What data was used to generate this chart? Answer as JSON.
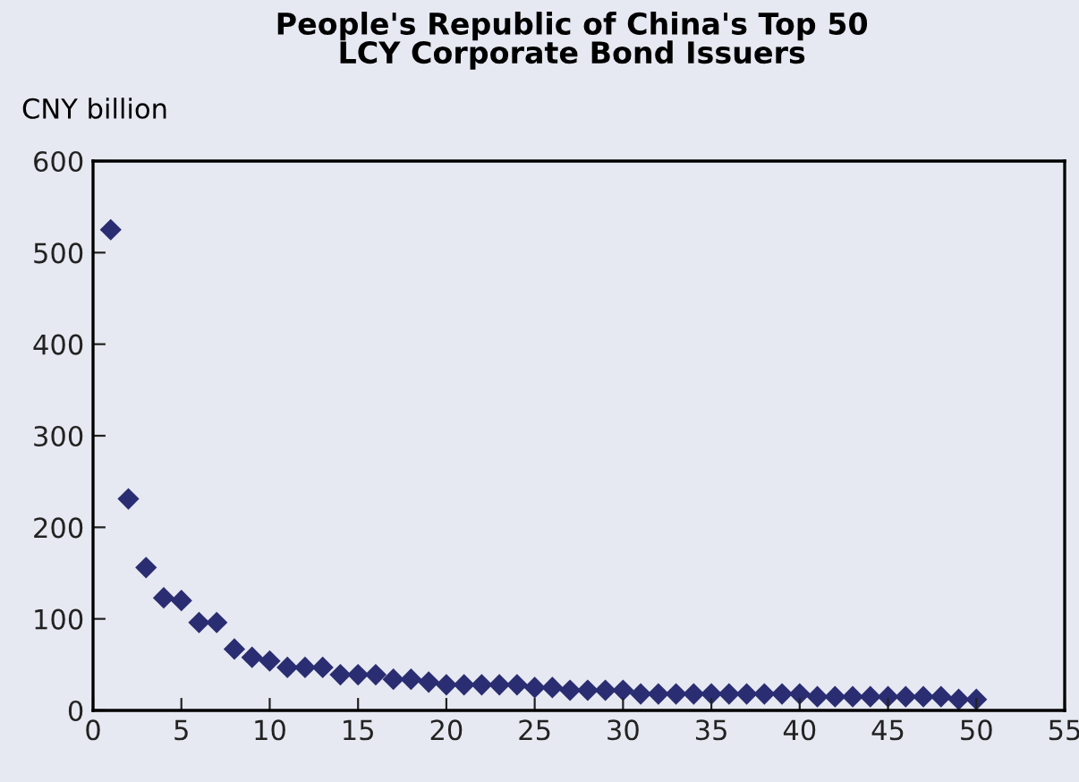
{
  "chart_data": {
    "type": "scatter",
    "title": "People's Republic of China's Top 50\nLCY Corporate Bond Issuers",
    "ylabel": "CNY billion",
    "x": [
      1,
      2,
      3,
      4,
      5,
      6,
      7,
      8,
      9,
      10,
      11,
      12,
      13,
      14,
      15,
      16,
      17,
      18,
      19,
      20,
      21,
      22,
      23,
      24,
      25,
      26,
      27,
      28,
      29,
      30,
      31,
      32,
      33,
      34,
      35,
      36,
      37,
      38,
      39,
      40,
      41,
      42,
      43,
      44,
      45,
      46,
      47,
      48,
      49,
      50
    ],
    "series": [
      {
        "color": "#2b2d72",
        "values": [
          525,
          231,
          156,
          123,
          120,
          96,
          96,
          67,
          58,
          54,
          47,
          47,
          47,
          39,
          39,
          39,
          34,
          34,
          31,
          28,
          28,
          28,
          28,
          28,
          25,
          25,
          22,
          22,
          22,
          22,
          18,
          18,
          18,
          18,
          18,
          18,
          18,
          18,
          18,
          18,
          15,
          15,
          15,
          15,
          15,
          15,
          15,
          15,
          12,
          12
        ]
      }
    ],
    "marker": "diamond",
    "xlim": [
      0,
      55
    ],
    "xticks": [
      0,
      5,
      10,
      15,
      20,
      25,
      30,
      35,
      40,
      45,
      50,
      55
    ],
    "ylim": [
      0,
      600
    ],
    "yticks": [
      0,
      100,
      200,
      300,
      400,
      500,
      600
    ],
    "grid": false,
    "legend": false
  }
}
